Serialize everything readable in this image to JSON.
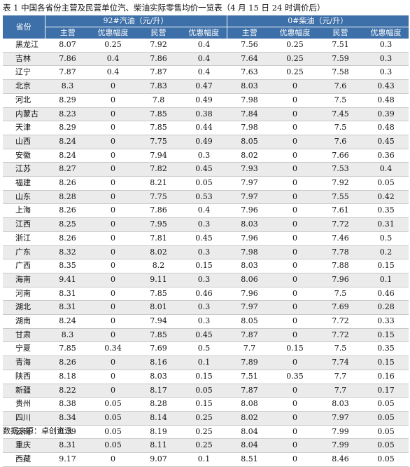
{
  "caption": "表 1 中国各省份主营及民营单位汽、柴油实际零售均价一览表（4 月 15 日 24 时调价后）",
  "header": {
    "province": "省份",
    "gasoline_group": "92#汽油（元/升）",
    "diesel_group": "0#柴油（元/升）",
    "columns": [
      "主营",
      "优惠幅度",
      "民营",
      "优惠幅度",
      "主营",
      "优惠幅度",
      "民营",
      "优惠幅度"
    ]
  },
  "rows": [
    [
      "黑龙江",
      "8.07",
      "0.25",
      "7.92",
      "0.4",
      "7.56",
      "0.25",
      "7.51",
      "0.3"
    ],
    [
      "吉林",
      "7.86",
      "0.4",
      "7.86",
      "0.4",
      "7.64",
      "0.25",
      "7.59",
      "0.3"
    ],
    [
      "辽宁",
      "7.87",
      "0.4",
      "7.87",
      "0.4",
      "7.63",
      "0.25",
      "7.58",
      "0.3"
    ],
    [
      "北京",
      "8.3",
      "0",
      "7.83",
      "0.47",
      "8.03",
      "0",
      "7.6",
      "0.43"
    ],
    [
      "河北",
      "8.29",
      "0",
      "7.8",
      "0.49",
      "7.98",
      "0",
      "7.5",
      "0.48"
    ],
    [
      "内蒙古",
      "8.23",
      "0",
      "7.85",
      "0.38",
      "7.84",
      "0",
      "7.45",
      "0.39"
    ],
    [
      "天津",
      "8.29",
      "0",
      "7.85",
      "0.44",
      "7.98",
      "0",
      "7.5",
      "0.48"
    ],
    [
      "山西",
      "8.24",
      "0",
      "7.75",
      "0.49",
      "8.05",
      "0",
      "7.6",
      "0.45"
    ],
    [
      "安徽",
      "8.24",
      "0",
      "7.94",
      "0.3",
      "8.02",
      "0",
      "7.66",
      "0.36"
    ],
    [
      "江苏",
      "8.27",
      "0",
      "7.82",
      "0.45",
      "7.93",
      "0",
      "7.53",
      "0.4"
    ],
    [
      "福建",
      "8.26",
      "0",
      "8.21",
      "0.05",
      "7.97",
      "0",
      "7.92",
      "0.05"
    ],
    [
      "山东",
      "8.28",
      "0",
      "7.75",
      "0.53",
      "7.97",
      "0",
      "7.55",
      "0.42"
    ],
    [
      "上海",
      "8.26",
      "0",
      "7.86",
      "0.4",
      "7.96",
      "0",
      "7.61",
      "0.35"
    ],
    [
      "江西",
      "8.25",
      "0",
      "7.95",
      "0.3",
      "8.03",
      "0",
      "7.72",
      "0.31"
    ],
    [
      "浙江",
      "8.26",
      "0",
      "7.81",
      "0.45",
      "7.96",
      "0",
      "7.46",
      "0.5"
    ],
    [
      "广东",
      "8.32",
      "0",
      "8.02",
      "0.3",
      "7.98",
      "0",
      "7.78",
      "0.2"
    ],
    [
      "广西",
      "8.35",
      "0",
      "8.2",
      "0.15",
      "8.03",
      "0",
      "7.88",
      "0.15"
    ],
    [
      "海南",
      "9.41",
      "0",
      "9.11",
      "0.3",
      "8.06",
      "0",
      "7.96",
      "0.1"
    ],
    [
      "河南",
      "8.31",
      "0",
      "7.85",
      "0.46",
      "7.96",
      "0",
      "7.5",
      "0.46"
    ],
    [
      "湖北",
      "8.31",
      "0",
      "8.01",
      "0.3",
      "7.97",
      "0",
      "7.69",
      "0.28"
    ],
    [
      "湖南",
      "8.24",
      "0",
      "7.94",
      "0.3",
      "8.05",
      "0",
      "7.72",
      "0.33"
    ],
    [
      "甘肃",
      "8.3",
      "0",
      "7.85",
      "0.45",
      "7.87",
      "0",
      "7.72",
      "0.15"
    ],
    [
      "宁夏",
      "7.85",
      "0.34",
      "7.69",
      "0.5",
      "7.7",
      "0.15",
      "7.5",
      "0.35"
    ],
    [
      "青海",
      "8.26",
      "0",
      "8.16",
      "0.1",
      "7.89",
      "0",
      "7.74",
      "0.15"
    ],
    [
      "陕西",
      "8.18",
      "0",
      "8.03",
      "0.15",
      "7.51",
      "0.35",
      "7.7",
      "0.16"
    ],
    [
      "新疆",
      "8.22",
      "0",
      "8.17",
      "0.05",
      "7.87",
      "0",
      "7.7",
      "0.17"
    ],
    [
      "贵州",
      "8.38",
      "0.05",
      "8.28",
      "0.15",
      "8.08",
      "0",
      "8.03",
      "0.05"
    ],
    [
      "四川",
      "8.34",
      "0.05",
      "8.14",
      "0.25",
      "8.02",
      "0",
      "7.97",
      "0.05"
    ],
    [
      "云南",
      "8.39",
      "0.05",
      "8.19",
      "0.25",
      "8.04",
      "0",
      "7.99",
      "0.05"
    ],
    [
      "重庆",
      "8.31",
      "0.05",
      "8.11",
      "0.25",
      "8.04",
      "0",
      "7.99",
      "0.05"
    ],
    [
      "西藏",
      "9.17",
      "0",
      "9.07",
      "0.1",
      "8.51",
      "0",
      "8.46",
      "0.05"
    ]
  ],
  "source": "数据来源：卓创资讯"
}
